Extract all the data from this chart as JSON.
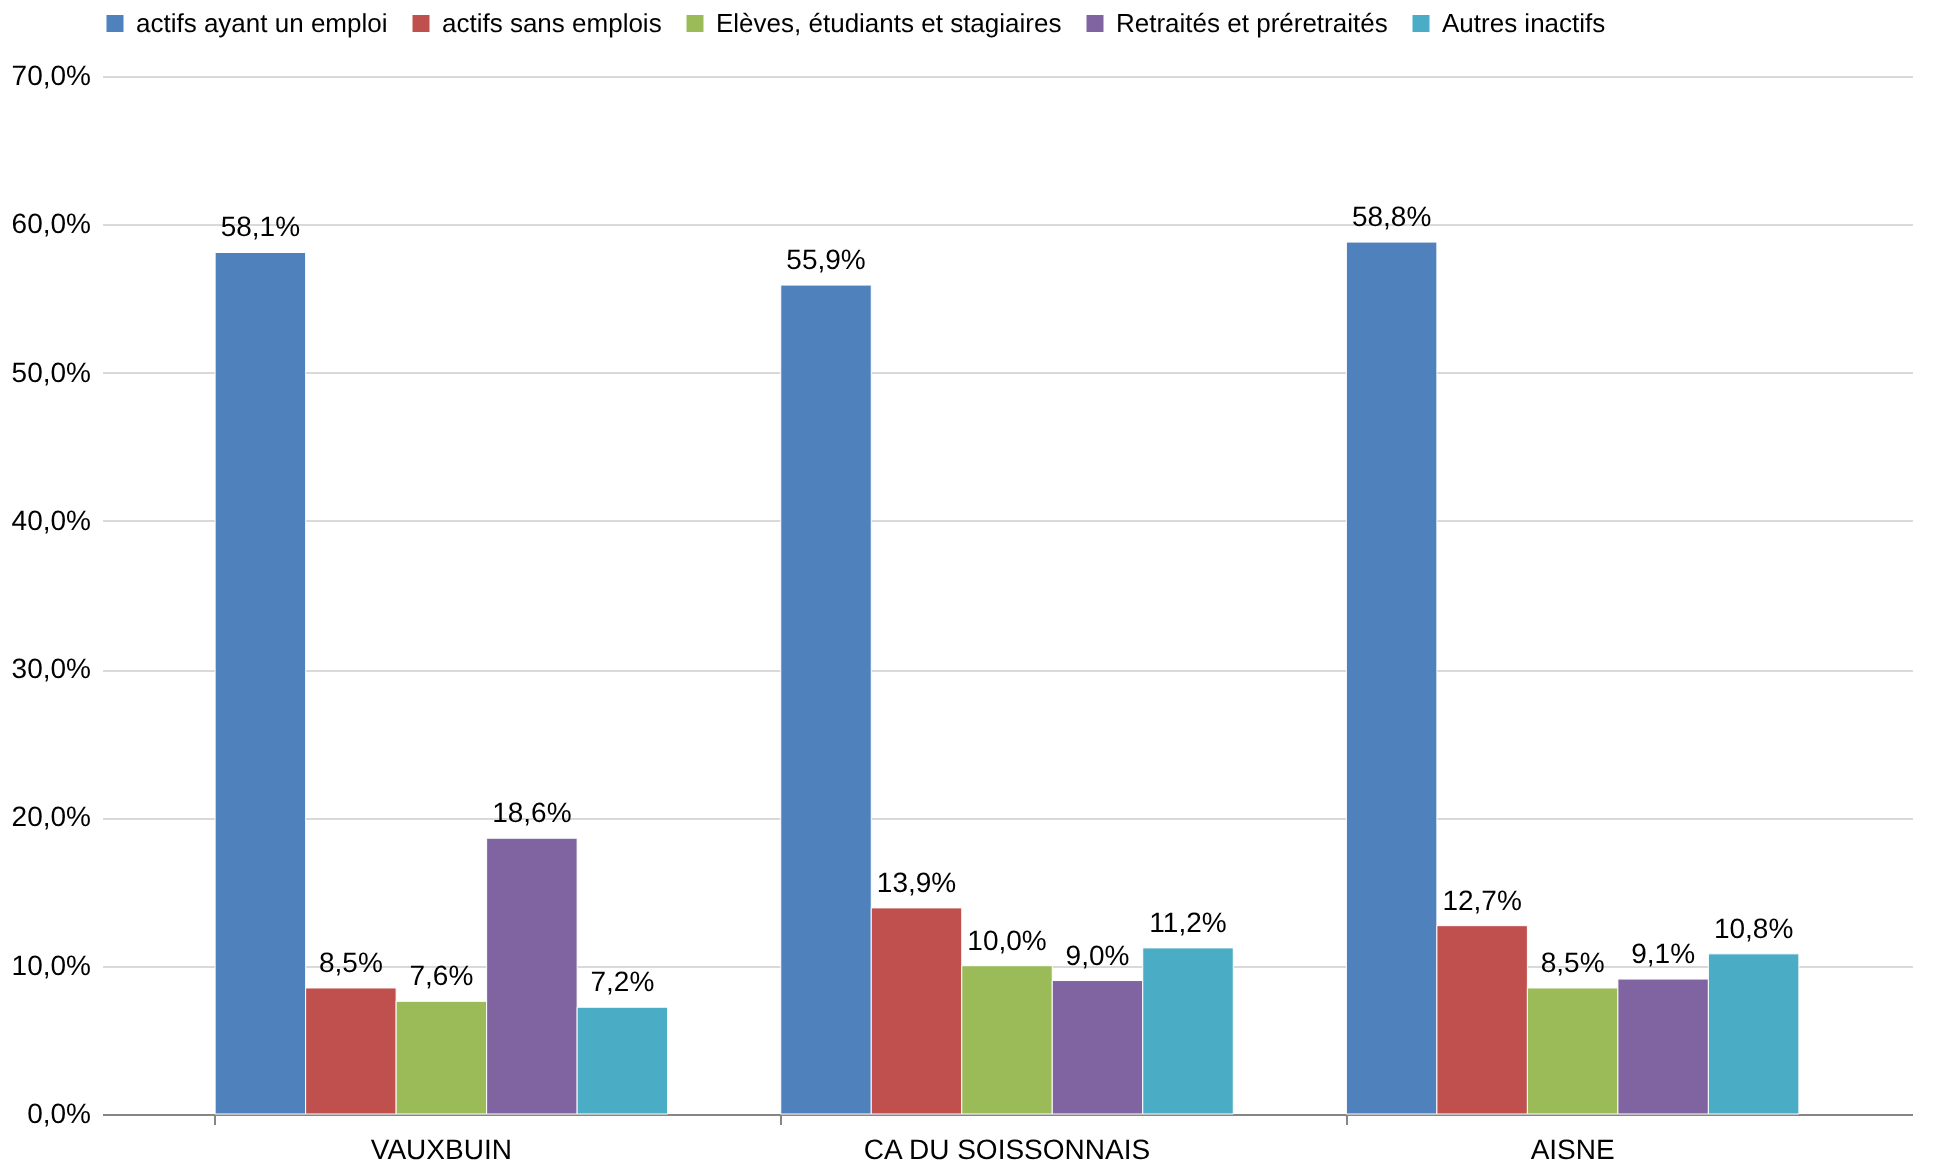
{
  "chart_data": {
    "type": "bar",
    "categories": [
      "VAUXBUIN",
      "CA DU SOISSONNAIS",
      "AISNE"
    ],
    "series": [
      {
        "name": "actifs ayant un emploi",
        "color": "#4f81bd",
        "values": [
          58.1,
          55.9,
          58.8
        ],
        "value_labels": [
          "58,1%",
          "55,9%",
          "58,8%"
        ]
      },
      {
        "name": "actifs sans emplois",
        "color": "#c0504d",
        "values": [
          8.5,
          13.9,
          12.7
        ],
        "value_labels": [
          "8,5%",
          "13,9%",
          "12,7%"
        ]
      },
      {
        "name": "Elèves, étudiants et stagiaires",
        "color": "#9bbb59",
        "values": [
          7.6,
          10.0,
          8.5
        ],
        "value_labels": [
          "7,6%",
          "10,0%",
          "8,5%"
        ]
      },
      {
        "name": "Retraités et préretraités",
        "color": "#8064a2",
        "values": [
          18.6,
          9.0,
          9.1
        ],
        "value_labels": [
          "18,6%",
          "9,0%",
          "9,1%"
        ]
      },
      {
        "name": "Autres inactifs",
        "color": "#4bacc6",
        "values": [
          7.2,
          11.2,
          10.8
        ],
        "value_labels": [
          "7,2%",
          "11,2%",
          "10,8%"
        ]
      }
    ],
    "ylim": [
      0,
      70
    ],
    "yticks": [
      {
        "value": 0,
        "label": "0,0%"
      },
      {
        "value": 10,
        "label": "10,0%"
      },
      {
        "value": 20,
        "label": "20,0%"
      },
      {
        "value": 30,
        "label": "30,0%"
      },
      {
        "value": 40,
        "label": "40,0%"
      },
      {
        "value": 50,
        "label": "50,0%"
      },
      {
        "value": 60,
        "label": "60,0%"
      },
      {
        "value": 70,
        "label": "70,0%"
      }
    ],
    "grid": "y",
    "legend": "top"
  }
}
